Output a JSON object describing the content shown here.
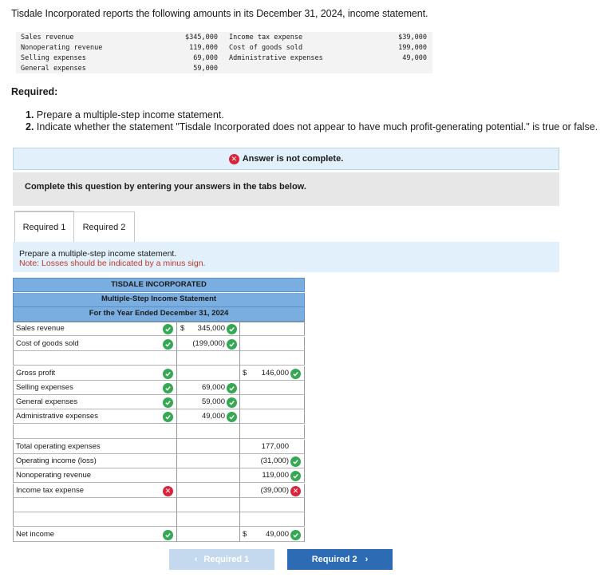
{
  "intro": "Tisdale Incorporated reports the following amounts in its December 31, 2024, income statement.",
  "given": {
    "left": [
      {
        "label": "Sales revenue",
        "amount": "$345,000"
      },
      {
        "label": "Nonoperating revenue",
        "amount": "119,000"
      },
      {
        "label": "Selling expenses",
        "amount": "69,000"
      },
      {
        "label": "General expenses",
        "amount": "59,000"
      }
    ],
    "right": [
      {
        "label": "Income tax expense",
        "amount": "$39,000"
      },
      {
        "label": "Cost of goods sold",
        "amount": "199,000"
      },
      {
        "label": "Administrative expenses",
        "amount": "49,000"
      }
    ]
  },
  "required_title": "Required:",
  "requirements": [
    {
      "num": "1.",
      "text": "Prepare a multiple-step income statement."
    },
    {
      "num": "2.",
      "text": "Indicate whether the statement \"Tisdale Incorporated does not appear to have much profit-generating potential.\" is true or false."
    }
  ],
  "status_banner": "Answer is not complete.",
  "instruction_banner": "Complete this question by entering your answers in the tabs below.",
  "tabs": [
    {
      "label": "Required 1",
      "active": true
    },
    {
      "label": "Required 2",
      "active": false
    }
  ],
  "prompt": {
    "text": "Prepare a multiple-step income statement.",
    "note": "Note: Losses should be indicated by a minus sign."
  },
  "statement": {
    "company": "TISDALE INCORPORATED",
    "title": "Multiple-Step Income Statement",
    "period": "For the Year Ended December 31, 2024",
    "rows": {
      "sales_revenue": {
        "label": "Sales revenue",
        "dollar": "$",
        "col1": "345,000"
      },
      "cogs": {
        "label": "Cost of goods sold",
        "col1": "(199,000)"
      },
      "gross_profit": {
        "label": "Gross profit",
        "dollar": "$",
        "col2": "146,000"
      },
      "selling": {
        "label": "Selling expenses",
        "col1": "69,000"
      },
      "general": {
        "label": "General expenses",
        "col1": "59,000"
      },
      "admin": {
        "label": "Administrative expenses",
        "col1": "49,000"
      },
      "total_opex": {
        "label": "Total operating expenses",
        "col2": "177,000"
      },
      "op_income": {
        "label": "Operating income (loss)",
        "col2": "(31,000)"
      },
      "nonop": {
        "label": "Nonoperating revenue",
        "col2": "119,000"
      },
      "tax": {
        "label": "Income tax expense",
        "col2": "(39,000)"
      },
      "net_income": {
        "label": "Net income",
        "dollar": "$",
        "col2": "49,000"
      }
    }
  },
  "nav": {
    "prev_label": "Required 1",
    "next_label": "Required 2"
  },
  "colors": {
    "correct": "#34a853",
    "incorrect": "#d9253c",
    "header_blue": "#7aaee0",
    "next_button": "#2e6bb5"
  }
}
